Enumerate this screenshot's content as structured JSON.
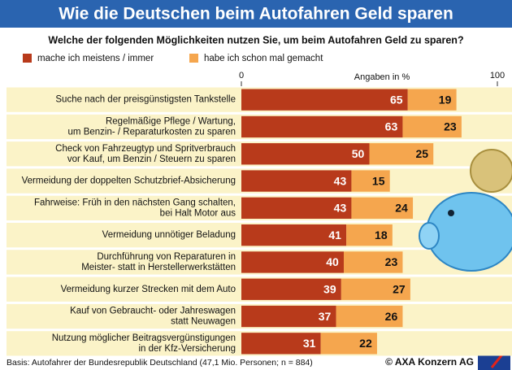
{
  "chart_data": {
    "type": "stacked-bar",
    "title": "Wie die Deutschen beim Autofahren Geld sparen",
    "subtitle": "Welche der folgenden Möglichkeiten nutzen Sie, um beim Autofahren Geld zu sparen?",
    "x_axis_label": "Angaben  in %",
    "categories": [
      "Suche nach der preisgünstigsten Tankstelle",
      "Regelmäßige Pflege / Wartung,\num Benzin- / Reparaturkosten zu sparen",
      "Check von Fahrzeugtyp und Spritverbrauch\nvor Kauf, um Benzin / Steuern zu sparen",
      "Vermeidung der doppelten Schutzbrief-Absicherung",
      "Fahrweise: Früh in den nächsten Gang schalten,\nbei Halt Motor aus",
      "Vermeidung unnötiger Beladung",
      "Durchführung von Reparaturen in\nMeister- statt in Herstellerwerkstätten",
      "Vermeidung kurzer Strecken mit dem Auto",
      "Kauf von Gebraucht- oder Jahreswagen\nstatt Neuwagen",
      "Nutzung möglicher Beitragsvergünstigungen\nin der Kfz-Versicherung"
    ],
    "series": [
      {
        "name": "mache ich meistens / immer",
        "color": "#b83a1b",
        "values": [
          65,
          63,
          50,
          43,
          43,
          41,
          40,
          39,
          37,
          31
        ]
      },
      {
        "name": "habe ich schon mal gemacht",
        "color": "#f5a64e",
        "values": [
          19,
          23,
          25,
          15,
          24,
          18,
          23,
          27,
          26,
          22
        ]
      }
    ],
    "xlim": [
      0,
      100
    ],
    "xticks": [
      0,
      100
    ],
    "source": "Basis: Autofahrer der Bundesrepublik Deutschland (47,1 Mio. Personen; n = 884)",
    "credit": "© AXA Konzern AG"
  }
}
